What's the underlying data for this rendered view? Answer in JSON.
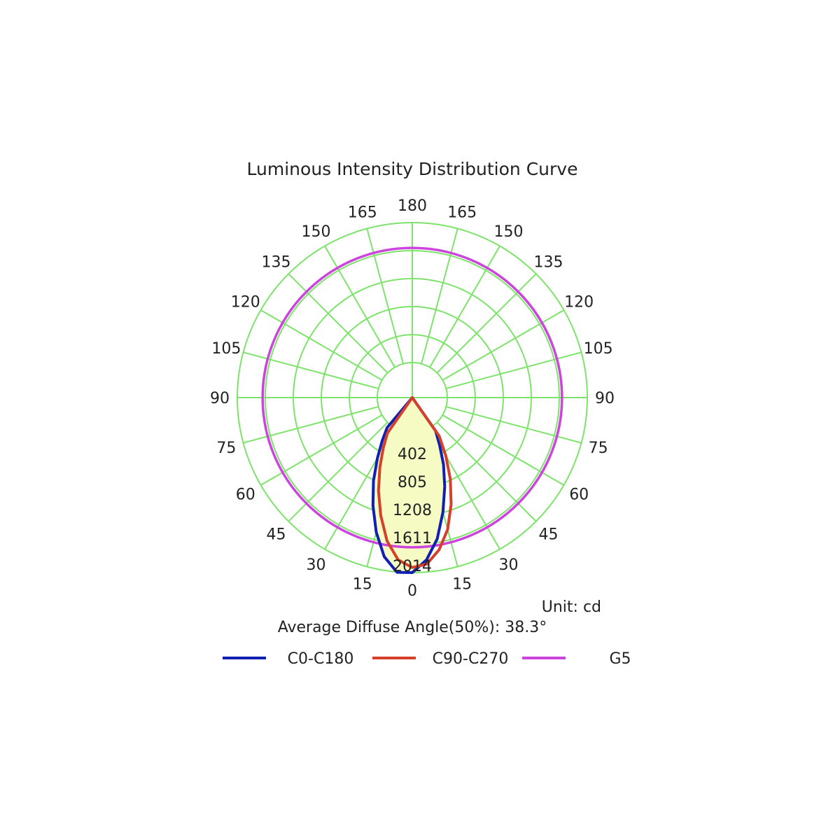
{
  "chart_data": {
    "type": "polar",
    "title": "Luminous Intensity Distribution Curve",
    "unit_label": "Unit: cd",
    "average_angle_label": "Average Diffuse Angle(50%): 38.3°",
    "r_max": 2014,
    "ring_labels": [
      "402",
      "805",
      "1208",
      "1611",
      "2014"
    ],
    "ring_values": [
      402,
      805,
      1208,
      1611,
      2014
    ],
    "angle_labels_left": [
      "0",
      "15",
      "30",
      "45",
      "60",
      "75",
      "90",
      "105",
      "120",
      "135",
      "150",
      "165",
      "180"
    ],
    "angle_labels_right": [
      "15",
      "30",
      "45",
      "60",
      "75",
      "90",
      "105",
      "120",
      "135",
      "150",
      "165"
    ],
    "grid": true,
    "grid_color": "#7de36a",
    "fill_color": "#f6fbc4",
    "legend_position": "bottom",
    "series": [
      {
        "name": "C0-C180",
        "color": "#1020b0",
        "points": [
          {
            "gamma": -180,
            "cd": 0
          },
          {
            "gamma": -90,
            "cd": 0
          },
          {
            "gamma": -45,
            "cd": 0
          },
          {
            "gamma": -40,
            "cd": 60
          },
          {
            "gamma": -35,
            "cd": 250
          },
          {
            "gamma": -30,
            "cd": 500
          },
          {
            "gamma": -25,
            "cd": 820
          },
          {
            "gamma": -20,
            "cd": 1150
          },
          {
            "gamma": -15,
            "cd": 1500
          },
          {
            "gamma": -10,
            "cd": 1820
          },
          {
            "gamma": -5,
            "cd": 2020
          },
          {
            "gamma": 0,
            "cd": 2014
          },
          {
            "gamma": 5,
            "cd": 1840
          },
          {
            "gamma": 10,
            "cd": 1560
          },
          {
            "gamma": 15,
            "cd": 1200
          },
          {
            "gamma": 20,
            "cd": 860
          },
          {
            "gamma": 25,
            "cd": 560
          },
          {
            "gamma": 30,
            "cd": 280
          },
          {
            "gamma": 35,
            "cd": 80
          },
          {
            "gamma": 40,
            "cd": 0
          },
          {
            "gamma": 90,
            "cd": 0
          },
          {
            "gamma": 180,
            "cd": 0
          }
        ]
      },
      {
        "name": "C90-C270",
        "color": "#d4402a",
        "points": [
          {
            "gamma": -180,
            "cd": 0
          },
          {
            "gamma": -90,
            "cd": 0
          },
          {
            "gamma": -40,
            "cd": 0
          },
          {
            "gamma": -35,
            "cd": 120
          },
          {
            "gamma": -30,
            "cd": 330
          },
          {
            "gamma": -25,
            "cd": 600
          },
          {
            "gamma": -20,
            "cd": 920
          },
          {
            "gamma": -15,
            "cd": 1250
          },
          {
            "gamma": -10,
            "cd": 1590
          },
          {
            "gamma": -5,
            "cd": 1840
          },
          {
            "gamma": 0,
            "cd": 1940
          },
          {
            "gamma": 5,
            "cd": 1900
          },
          {
            "gamma": 10,
            "cd": 1720
          },
          {
            "gamma": 15,
            "cd": 1460
          },
          {
            "gamma": 20,
            "cd": 1130
          },
          {
            "gamma": 25,
            "cd": 790
          },
          {
            "gamma": 30,
            "cd": 460
          },
          {
            "gamma": 35,
            "cd": 170
          },
          {
            "gamma": 40,
            "cd": 0
          },
          {
            "gamma": 90,
            "cd": 0
          },
          {
            "gamma": 180,
            "cd": 0
          }
        ]
      },
      {
        "name": "G5",
        "color": "#cc44dd",
        "circle_cd": 1650
      }
    ]
  }
}
